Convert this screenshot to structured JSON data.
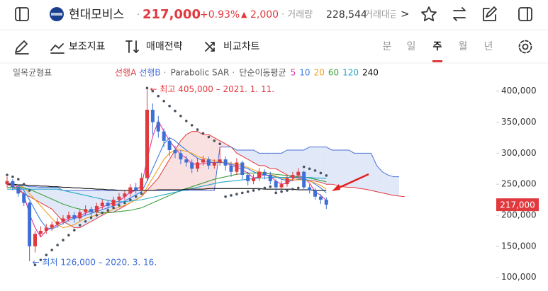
{
  "header": {
    "name": "현대모비스",
    "price": "217,000",
    "change_pct": "+0.93%",
    "change_mark": "▲",
    "change": "2,000",
    "volume_label": "· 거래량",
    "volume": "228,544",
    "amount_label": "거래대금",
    "more": ">"
  },
  "toolbar": {
    "tools": [
      "보조지표",
      "매매전략",
      "비교차트"
    ],
    "periods": [
      "분",
      "일",
      "주",
      "월",
      "년"
    ],
    "selected_period": "주"
  },
  "chart_data": {
    "type": "candlestick",
    "title": "일목균형표",
    "up_color": "#e0393e",
    "down_color": "#3d6fd6",
    "ylim": [
      78000,
      427000
    ],
    "yticks": [
      {
        "value": 100000,
        "label": "100,000"
      },
      {
        "value": 150000,
        "label": "150,000"
      },
      {
        "value": 200000,
        "label": "200,000"
      },
      {
        "value": 250000,
        "label": "250,000"
      },
      {
        "value": 300000,
        "label": "300,000"
      },
      {
        "value": 350000,
        "label": "350,000"
      },
      {
        "value": 400000,
        "label": "400,000"
      }
    ],
    "last": 217000,
    "open": [
      250000,
      255000,
      245000,
      235000,
      220000,
      150000,
      170000,
      175000,
      180000,
      185000,
      190000,
      195000,
      200000,
      195000,
      205000,
      210000,
      205000,
      215000,
      220000,
      215000,
      225000,
      230000,
      235000,
      245000,
      240000,
      260000,
      370000,
      350000,
      335000,
      320000,
      305000,
      300000,
      290000,
      285000,
      275000,
      285000,
      290000,
      280000,
      285000,
      290000,
      280000,
      270000,
      285000,
      265000,
      255000,
      260000,
      270000,
      265000,
      255000,
      245000,
      250000,
      260000,
      265000,
      270000,
      245000,
      240000,
      230000,
      225000
    ],
    "high": [
      262000,
      258000,
      250000,
      238000,
      222000,
      175000,
      182000,
      186000,
      190000,
      196000,
      200000,
      206000,
      205000,
      210000,
      216000,
      214000,
      220000,
      226000,
      224000,
      230000,
      236000,
      240000,
      250000,
      252000,
      268000,
      405000,
      380000,
      360000,
      340000,
      325000,
      312000,
      305000,
      296000,
      290000,
      292000,
      296000,
      294000,
      290000,
      310000,
      295000,
      286000,
      292000,
      288000,
      270000,
      266000,
      276000,
      274000,
      270000,
      258000,
      256000,
      265000,
      270000,
      276000,
      272000,
      250000,
      244000,
      234000,
      229000
    ],
    "low": [
      245000,
      240000,
      230000,
      215000,
      126000,
      140000,
      165000,
      170000,
      175000,
      180000,
      185000,
      190000,
      188000,
      190000,
      200000,
      198000,
      200000,
      210000,
      208000,
      210000,
      220000,
      225000,
      230000,
      235000,
      238000,
      255000,
      330000,
      325000,
      310000,
      295000,
      292000,
      282000,
      278000,
      268000,
      270000,
      280000,
      274000,
      275000,
      280000,
      272000,
      262000,
      265000,
      258000,
      248000,
      250000,
      255000,
      258000,
      250000,
      238000,
      240000,
      246000,
      255000,
      260000,
      240000,
      235000,
      225000,
      218000,
      210000
    ],
    "close": [
      255000,
      245000,
      235000,
      220000,
      150000,
      170000,
      175000,
      180000,
      185000,
      190000,
      195000,
      200000,
      195000,
      205000,
      210000,
      205000,
      215000,
      220000,
      215000,
      225000,
      230000,
      235000,
      245000,
      240000,
      260000,
      370000,
      350000,
      335000,
      320000,
      305000,
      300000,
      290000,
      285000,
      275000,
      285000,
      290000,
      280000,
      285000,
      290000,
      280000,
      270000,
      285000,
      265000,
      255000,
      260000,
      270000,
      265000,
      255000,
      245000,
      250000,
      260000,
      265000,
      270000,
      245000,
      240000,
      230000,
      225000,
      217000
    ],
    "cloud": [
      {
        "name": "선행A",
        "color": "#e0393e",
        "values": [
          250000,
          245000,
          240000,
          235000,
          230000,
          225000,
          220000,
          215000,
          210000,
          200000,
          190000,
          185000,
          180000,
          180000,
          185000,
          190000,
          195000,
          200000,
          205000,
          205000,
          210000,
          215000,
          220000,
          225000,
          230000,
          240000,
          250000,
          260000,
          275000,
          290000,
          305000,
          320000,
          330000,
          335000,
          335000,
          330000,
          330000,
          325000,
          320000,
          315000,
          310000,
          300000,
          295000,
          290000,
          285000,
          280000,
          280000,
          275000,
          275000,
          270000,
          265000,
          260000,
          260000,
          258000,
          256000,
          255000,
          253000,
          250000,
          250000,
          248000,
          246000,
          245000,
          245000,
          243000,
          242000,
          240000,
          238000,
          236000,
          234000,
          232000,
          231000,
          230000
        ]
      },
      {
        "name": "선행B",
        "color": "#4a6fd8",
        "values": [
          250000,
          250000,
          248000,
          248000,
          246000,
          246000,
          245000,
          245000,
          245000,
          245000,
          240000,
          240000,
          240000,
          240000,
          240000,
          240000,
          240000,
          240000,
          240000,
          240000,
          240000,
          240000,
          240000,
          240000,
          240000,
          240000,
          240000,
          240000,
          240000,
          240000,
          240000,
          240000,
          240000,
          240000,
          240000,
          240000,
          240000,
          240000,
          310000,
          310000,
          310000,
          305000,
          305000,
          305000,
          305000,
          300000,
          300000,
          300000,
          300000,
          300000,
          305000,
          305000,
          305000,
          305000,
          310000,
          310000,
          310000,
          310000,
          305000,
          305000,
          305000,
          305000,
          300000,
          300000,
          300000,
          300000,
          280000,
          270000,
          265000,
          262000,
          262000
        ]
      }
    ],
    "sar": {
      "name": "Parabolic SAR",
      "color": "#46525f",
      "values": [
        265000,
        262000,
        258000,
        250000,
        240000,
        120000,
        128000,
        136000,
        144000,
        152000,
        160000,
        168000,
        176000,
        184000,
        190000,
        196000,
        200000,
        204000,
        208000,
        212000,
        216000,
        220000,
        225000,
        230000,
        235000,
        405000,
        400000,
        392000,
        384000,
        376000,
        368000,
        360000,
        352000,
        345000,
        338000,
        332000,
        326000,
        320000,
        315000,
        230000,
        232000,
        234000,
        236000,
        238000,
        240000,
        242000,
        244000,
        246000,
        236000,
        238000,
        240000,
        242000,
        244000,
        278000,
        275000,
        272000,
        268000,
        264000
      ]
    },
    "ma": {
      "label": "단순이동평균",
      "series": [
        {
          "name": "5",
          "color": "#e0369a",
          "values": [
            252000,
            250000,
            245000,
            233000,
            202000,
            180000,
            165000,
            175000,
            180000,
            185000,
            190000,
            195000,
            197000,
            200000,
            203000,
            207000,
            210000,
            213000,
            217000,
            220000,
            223000,
            230000,
            237000,
            240000,
            248000,
            290000,
            327000,
            352000,
            335000,
            320000,
            308000,
            298000,
            292000,
            283000,
            282000,
            283000,
            285000,
            285000,
            285000,
            285000,
            280000,
            278000,
            273000,
            268000,
            260000,
            262000,
            265000,
            263000,
            255000,
            250000,
            252000,
            258000,
            265000,
            260000,
            252000,
            238000,
            232000,
            224000
          ]
        },
        {
          "name": "10",
          "color": "#3d7be0",
          "values": [
            252000,
            251000,
            248000,
            240000,
            225000,
            208000,
            192000,
            180000,
            178000,
            182000,
            187000,
            192000,
            195000,
            197000,
            200000,
            203000,
            206000,
            209000,
            212000,
            215000,
            219000,
            223000,
            228000,
            233000,
            238000,
            255000,
            275000,
            295000,
            315000,
            325000,
            320000,
            312000,
            305000,
            298000,
            292000,
            288000,
            286000,
            285000,
            285000,
            284000,
            282000,
            280000,
            278000,
            275000,
            270000,
            267000,
            265000,
            264000,
            262000,
            258000,
            256000,
            256000,
            258000,
            258000,
            256000,
            250000,
            244000,
            236000
          ]
        },
        {
          "name": "20",
          "color": "#f0a020",
          "values": [
            250000,
            250000,
            248000,
            245000,
            235000,
            225000,
            215000,
            205000,
            195000,
            185000,
            180000,
            182000,
            185000,
            190000,
            195000,
            198000,
            200000,
            203000,
            206000,
            210000,
            213000,
            216000,
            220000,
            225000,
            230000,
            245000,
            260000,
            275000,
            290000,
            300000,
            305000,
            305000,
            303000,
            300000,
            295000,
            292000,
            290000,
            288000,
            286000,
            285000,
            284000,
            283000,
            280000,
            277000,
            273000,
            270000,
            268000,
            266000,
            263000,
            260000,
            258000,
            257000,
            257000,
            257000,
            255000,
            252000,
            248000,
            242000
          ]
        },
        {
          "name": "60",
          "color": "#3ca040",
          "values": [
            245000,
            245000,
            245000,
            244000,
            242000,
            238000,
            234000,
            230000,
            226000,
            222000,
            218000,
            215000,
            212000,
            210000,
            208000,
            206000,
            205000,
            204000,
            204000,
            205000,
            206000,
            207000,
            208000,
            210000,
            212000,
            216000,
            220000,
            224000,
            228000,
            232000,
            236000,
            240000,
            243000,
            246000,
            249000,
            252000,
            255000,
            258000,
            260000,
            262000,
            264000,
            266000,
            267000,
            268000,
            268000,
            268000,
            268000,
            267000,
            266000,
            265000,
            264000,
            263000,
            262000,
            261000,
            260000,
            258000,
            256000,
            254000
          ]
        },
        {
          "name": "120",
          "color": "#29a7c9",
          "values": [
            242000,
            242000,
            242000,
            242000,
            242000,
            242000,
            242000,
            242000,
            242000,
            242000,
            240000,
            238000,
            236000,
            234000,
            232000,
            230000,
            228000,
            226000,
            224000,
            222000,
            222000,
            222000,
            223000,
            224000,
            225000,
            227000,
            229000,
            231000,
            233000,
            235000,
            237000,
            239000,
            241000,
            243000,
            245000,
            247000,
            249000,
            251000,
            253000,
            254000,
            255000,
            256000,
            257000,
            258000,
            259000,
            260000,
            260000,
            261000,
            261000,
            261000,
            261000,
            261000,
            261000,
            261000,
            261000,
            260000,
            260000,
            259000
          ]
        },
        {
          "name": "240",
          "color": "#111111",
          "values": [
            250000,
            250000,
            249000,
            249000,
            248000,
            248000,
            247000,
            247000,
            246000,
            246000,
            245000,
            245000,
            244000,
            244000,
            243000,
            243000,
            242000,
            242000,
            241000,
            241000,
            240000,
            240000,
            240000,
            240000,
            240000,
            240000,
            240000,
            241000,
            241000,
            241000,
            241000,
            241000,
            242000,
            242000,
            242000,
            242000,
            243000,
            243000,
            243000,
            243000,
            243000,
            243000,
            243000,
            243000,
            243000,
            243000,
            242000,
            242000,
            242000,
            242000,
            242000,
            242000,
            241000,
            241000,
            241000,
            240000,
            240000,
            240000
          ]
        }
      ]
    },
    "annotations": {
      "high": "← 최고 405,000 – 2021. 1. 11.",
      "low": "← 최저 126,000 – 2020. 3. 16."
    }
  }
}
